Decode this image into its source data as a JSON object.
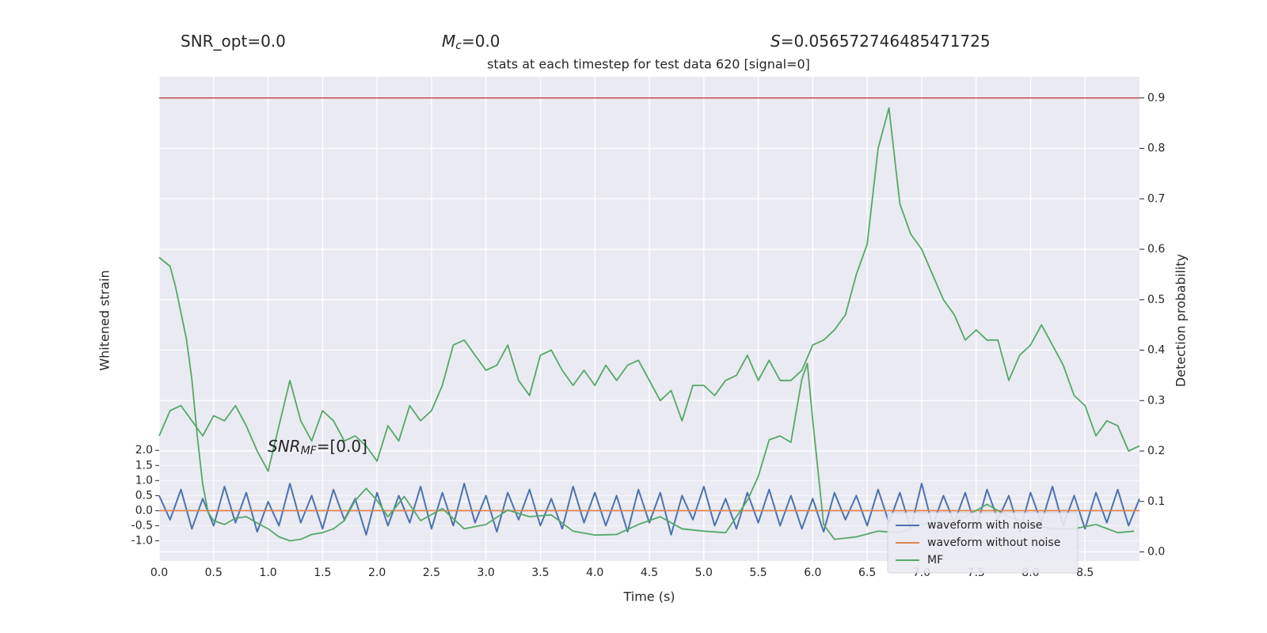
{
  "chart_data": {
    "type": "line",
    "title": "stats at each timestep for test data 620 [signal=0]",
    "annotations": [
      {
        "text": "SNR_opt=0.0"
      },
      {
        "base": "M",
        "sub": "c",
        "text": "=0.0"
      },
      {
        "base": "S",
        "text": "=0.056572746485471725"
      },
      {
        "base": "SNR",
        "sub": "MF",
        "text": "=[0.0]"
      }
    ],
    "xlabel": "Time (s)",
    "ylabel": "Whitened strain",
    "y2label": "Detection probability",
    "xlim": [
      0,
      9.0
    ],
    "xticks": [
      {
        "value": 0,
        "label": "0.0"
      },
      0.5,
      {
        "value": 1,
        "label": "1.0"
      },
      1.5,
      {
        "value": 2,
        "label": "2.0"
      },
      2.5,
      {
        "value": 3,
        "label": "3.0"
      },
      3.5,
      {
        "value": 4,
        "label": "4.0"
      },
      4.5,
      {
        "value": 5,
        "label": "5.0"
      },
      5.5,
      {
        "value": 6,
        "label": "6.0"
      },
      6.5,
      {
        "value": 7,
        "label": "7.0"
      },
      7.5,
      {
        "value": 8,
        "label": "8.0"
      },
      8.5
    ],
    "ylim": [
      -1.67,
      14.4
    ],
    "yticks": [
      {
        "value": -1,
        "label": "-1.0"
      },
      -0.5,
      {
        "value": 0,
        "label": "0.0"
      },
      0.5,
      {
        "value": 1,
        "label": "1.0"
      },
      1.5,
      {
        "value": 2,
        "label": "2.0"
      }
    ],
    "y2lim": [
      -0.018,
      0.942
    ],
    "y2ticks": [
      {
        "value": 0,
        "label": "0.0"
      },
      0.1,
      0.2,
      0.3,
      0.4,
      0.5,
      0.6,
      0.7,
      0.8,
      0.9
    ],
    "grid": true,
    "legend": "lower right",
    "x": [
      0,
      0.1,
      0.2,
      0.3,
      0.4,
      0.5,
      0.6,
      0.7,
      0.8,
      0.9,
      1.0,
      1.1,
      1.2,
      1.3,
      1.4,
      1.5,
      1.6,
      1.7,
      1.8,
      1.9,
      2.0,
      2.1,
      2.2,
      2.3,
      2.4,
      2.5,
      2.6,
      2.7,
      2.8,
      2.9,
      3.0,
      3.1,
      3.2,
      3.3,
      3.4,
      3.5,
      3.6,
      3.7,
      3.8,
      3.9,
      4.0,
      4.1,
      4.2,
      4.3,
      4.4,
      4.5,
      4.6,
      4.7,
      4.8,
      4.9,
      5.0,
      5.1,
      5.2,
      5.3,
      5.4,
      5.5,
      5.6,
      5.7,
      5.8,
      5.9,
      6.0,
      6.1,
      6.2,
      6.3,
      6.4,
      6.5,
      6.6,
      6.7,
      6.8,
      6.9,
      7.0,
      7.1,
      7.2,
      7.3,
      7.4,
      7.5,
      7.6,
      7.7,
      7.8,
      7.9,
      8.0,
      8.1,
      8.2,
      8.3,
      8.4,
      8.5,
      8.6,
      8.7,
      8.8,
      8.9,
      9.0
    ],
    "series": [
      {
        "name": "waveform with noise",
        "color": "#4c72b0",
        "values": [
          0.5,
          -0.3,
          0.7,
          -0.6,
          0.4,
          -0.5,
          0.8,
          -0.4,
          0.6,
          -0.7,
          0.3,
          -0.5,
          0.9,
          -0.4,
          0.5,
          -0.6,
          0.7,
          -0.3,
          0.4,
          -0.8,
          0.6,
          -0.5,
          0.5,
          -0.4,
          0.8,
          -0.6,
          0.6,
          -0.5,
          0.9,
          -0.4,
          0.5,
          -0.7,
          0.6,
          -0.3,
          0.7,
          -0.5,
          0.4,
          -0.6,
          0.8,
          -0.4,
          0.6,
          -0.5,
          0.5,
          -0.7,
          0.7,
          -0.4,
          0.6,
          -0.8,
          0.5,
          -0.3,
          0.8,
          -0.5,
          0.4,
          -0.6,
          0.6,
          -0.4,
          0.7,
          -0.5,
          0.5,
          -0.6,
          0.4,
          -0.7,
          0.6,
          -0.3,
          0.5,
          -0.5,
          0.7,
          -0.4,
          0.6,
          -0.6,
          0.9,
          -0.5,
          0.5,
          -0.4,
          0.6,
          -0.6,
          0.7,
          -0.3,
          0.5,
          -0.7,
          0.6,
          -0.4,
          0.8,
          -0.5,
          0.5,
          -0.6,
          0.6,
          -0.4,
          0.7,
          -0.5,
          0.4
        ]
      },
      {
        "name": "waveform without noise",
        "color": "#dd8452",
        "x": [
          0,
          9.0
        ],
        "values": [
          0,
          0
        ]
      },
      {
        "name": "MF",
        "color": "#55a868",
        "x": [
          0,
          0.1,
          0.15,
          0.25,
          0.3,
          0.35,
          0.4,
          0.45,
          0.5,
          0.6,
          0.7,
          0.8,
          0.9,
          1.0,
          1.1,
          1.2,
          1.3,
          1.4,
          1.5,
          1.6,
          1.7,
          1.8,
          1.9,
          2.0,
          2.1,
          2.25,
          2.4,
          2.6,
          2.8,
          3.0,
          3.2,
          3.4,
          3.6,
          3.8,
          4.0,
          4.2,
          4.4,
          4.6,
          4.8,
          5.0,
          5.2,
          5.4,
          5.5,
          5.6,
          5.7,
          5.8,
          5.9,
          5.95,
          6.0,
          6.1,
          6.2,
          6.4,
          6.6,
          6.8,
          7.0,
          7.2,
          7.4,
          7.6,
          7.8,
          8.0,
          8.2,
          8.4,
          8.6,
          8.8,
          8.95
        ],
        "values": [
          8.4,
          8.11,
          7.44,
          5.7,
          4.36,
          2.48,
          0.87,
          -0.06,
          -0.33,
          -0.46,
          -0.25,
          -0.2,
          -0.41,
          -0.6,
          -0.87,
          -1.0,
          -0.95,
          -0.79,
          -0.73,
          -0.6,
          -0.33,
          0.34,
          0.74,
          0.34,
          -0.2,
          0.47,
          -0.33,
          0.07,
          -0.6,
          -0.46,
          0.02,
          -0.2,
          -0.14,
          -0.68,
          -0.81,
          -0.79,
          -0.46,
          -0.2,
          -0.6,
          -0.68,
          -0.73,
          0.34,
          1.14,
          2.35,
          2.48,
          2.27,
          4.36,
          4.89,
          3.02,
          -0.46,
          -0.95,
          -0.87,
          -0.68,
          -0.73,
          -0.46,
          -0.33,
          -0.2,
          0.21,
          -0.2,
          -0.46,
          -0.6,
          -0.6,
          -0.46,
          -0.73,
          -0.68
        ]
      },
      {
        "color": "#55a868",
        "axis": "y2",
        "values": [
          0.23,
          0.28,
          0.29,
          0.26,
          0.23,
          0.27,
          0.26,
          0.29,
          0.25,
          0.2,
          0.16,
          0.25,
          0.34,
          0.26,
          0.22,
          0.28,
          0.26,
          0.22,
          0.23,
          0.21,
          0.18,
          0.25,
          0.22,
          0.29,
          0.26,
          0.28,
          0.33,
          0.41,
          0.42,
          0.39,
          0.36,
          0.37,
          0.41,
          0.34,
          0.31,
          0.39,
          0.4,
          0.36,
          0.33,
          0.36,
          0.33,
          0.37,
          0.34,
          0.37,
          0.38,
          0.34,
          0.3,
          0.32,
          0.26,
          0.33,
          0.33,
          0.31,
          0.34,
          0.35,
          0.39,
          0.34,
          0.38,
          0.34,
          0.34,
          0.36,
          0.41,
          0.42,
          0.44,
          0.47,
          0.55,
          0.61,
          0.8,
          0.88,
          0.69,
          0.63,
          0.6,
          0.55,
          0.5,
          0.47,
          0.42,
          0.44,
          0.42,
          0.42,
          0.34,
          0.39,
          0.41,
          0.45,
          0.41,
          0.37,
          0.31,
          0.29,
          0.23,
          0.26,
          0.25,
          0.2,
          0.21
        ]
      }
    ],
    "hlines": [
      {
        "value": 0.9,
        "color": "#c44e52",
        "axis": "y2"
      }
    ]
  }
}
